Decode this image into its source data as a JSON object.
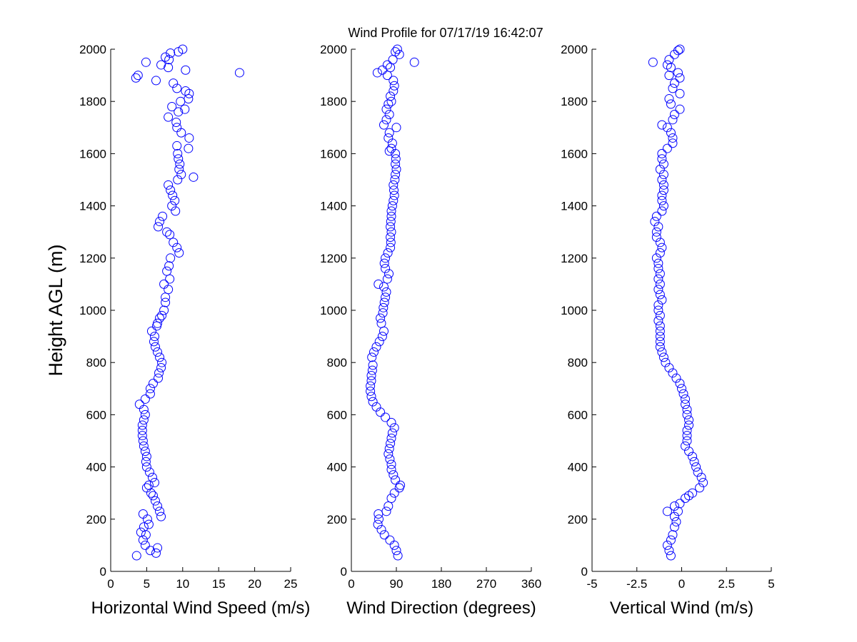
{
  "chart_data": [
    {
      "type": "scatter",
      "title": "Wind Profile for  07/17/19 16:42:07",
      "xlabel": "Horizontal Wind Speed (m/s)",
      "ylabel": "Height AGL (m)",
      "xlim": [
        0,
        25
      ],
      "ylim": [
        0,
        2000
      ],
      "xticks": [
        0,
        5,
        10,
        15,
        20,
        25
      ],
      "xtick_labels": [
        "0",
        "5",
        "10",
        "15",
        "20",
        "25"
      ],
      "yticks": [
        0,
        200,
        400,
        600,
        800,
        1000,
        1200,
        1400,
        1600,
        1800,
        2000
      ],
      "ytick_labels": [
        "0",
        "200",
        "400",
        "600",
        "800",
        "1000",
        "1200",
        "1400",
        "1600",
        "1800",
        "2000"
      ],
      "grid": false,
      "marker_color": "#0000ff",
      "points": [
        [
          3.6,
          60
        ],
        [
          6.3,
          70
        ],
        [
          6.5,
          90
        ],
        [
          5.5,
          80
        ],
        [
          4.8,
          100
        ],
        [
          4.5,
          120
        ],
        [
          4.9,
          140
        ],
        [
          4.2,
          150
        ],
        [
          4.6,
          170
        ],
        [
          5.3,
          180
        ],
        [
          5.1,
          200
        ],
        [
          4.5,
          220
        ],
        [
          7.0,
          210
        ],
        [
          6.8,
          230
        ],
        [
          6.5,
          250
        ],
        [
          6.2,
          270
        ],
        [
          5.9,
          290
        ],
        [
          5.6,
          300
        ],
        [
          5.0,
          320
        ],
        [
          5.3,
          330
        ],
        [
          6.1,
          340
        ],
        [
          5.8,
          360
        ],
        [
          5.4,
          380
        ],
        [
          5.0,
          400
        ],
        [
          4.9,
          420
        ],
        [
          5.0,
          440
        ],
        [
          4.8,
          460
        ],
        [
          4.6,
          480
        ],
        [
          4.5,
          500
        ],
        [
          4.4,
          520
        ],
        [
          4.4,
          540
        ],
        [
          4.4,
          560
        ],
        [
          4.6,
          580
        ],
        [
          4.8,
          600
        ],
        [
          4.6,
          620
        ],
        [
          4.0,
          640
        ],
        [
          4.8,
          660
        ],
        [
          5.5,
          680
        ],
        [
          5.5,
          700
        ],
        [
          5.9,
          720
        ],
        [
          6.6,
          740
        ],
        [
          6.7,
          760
        ],
        [
          7.0,
          780
        ],
        [
          7.1,
          800
        ],
        [
          6.8,
          820
        ],
        [
          6.5,
          840
        ],
        [
          6.2,
          860
        ],
        [
          6.0,
          880
        ],
        [
          6.1,
          900
        ],
        [
          5.7,
          920
        ],
        [
          6.4,
          940
        ],
        [
          6.5,
          950
        ],
        [
          6.8,
          970
        ],
        [
          7.1,
          980
        ],
        [
          7.4,
          1000
        ],
        [
          7.6,
          1030
        ],
        [
          7.6,
          1050
        ],
        [
          8.0,
          1080
        ],
        [
          7.4,
          1100
        ],
        [
          8.2,
          1120
        ],
        [
          7.8,
          1150
        ],
        [
          8.1,
          1170
        ],
        [
          8.3,
          1200
        ],
        [
          9.5,
          1220
        ],
        [
          9.2,
          1240
        ],
        [
          8.7,
          1260
        ],
        [
          8.2,
          1290
        ],
        [
          7.8,
          1300
        ],
        [
          6.6,
          1320
        ],
        [
          6.8,
          1340
        ],
        [
          7.2,
          1360
        ],
        [
          9.0,
          1380
        ],
        [
          8.5,
          1400
        ],
        [
          8.9,
          1420
        ],
        [
          8.6,
          1440
        ],
        [
          8.3,
          1460
        ],
        [
          8.0,
          1480
        ],
        [
          11.5,
          1510
        ],
        [
          9.3,
          1500
        ],
        [
          9.8,
          1520
        ],
        [
          9.5,
          1540
        ],
        [
          9.6,
          1560
        ],
        [
          9.4,
          1580
        ],
        [
          9.3,
          1600
        ],
        [
          10.8,
          1620
        ],
        [
          9.2,
          1630
        ],
        [
          10.9,
          1660
        ],
        [
          9.8,
          1680
        ],
        [
          9.2,
          1700
        ],
        [
          9.1,
          1720
        ],
        [
          8.0,
          1740
        ],
        [
          9.4,
          1760
        ],
        [
          8.5,
          1780
        ],
        [
          10.3,
          1770
        ],
        [
          9.7,
          1800
        ],
        [
          10.8,
          1810
        ],
        [
          10.9,
          1830
        ],
        [
          9.2,
          1850
        ],
        [
          8.7,
          1870
        ],
        [
          10.4,
          1840
        ],
        [
          6.3,
          1880
        ],
        [
          3.5,
          1890
        ],
        [
          3.8,
          1900
        ],
        [
          17.9,
          1910
        ],
        [
          10.4,
          1920
        ],
        [
          8.0,
          1930
        ],
        [
          7.0,
          1940
        ],
        [
          4.9,
          1950
        ],
        [
          8.1,
          1960
        ],
        [
          7.6,
          1970
        ],
        [
          9.4,
          1990
        ],
        [
          8.3,
          1985
        ],
        [
          10.0,
          2000
        ]
      ]
    },
    {
      "type": "scatter",
      "xlabel": "Wind Direction (degrees)",
      "ylabel": "",
      "xlim": [
        0,
        360
      ],
      "ylim": [
        0,
        2000
      ],
      "xticks": [
        0,
        90,
        180,
        270,
        360
      ],
      "xtick_labels": [
        "0",
        "90",
        "180",
        "270",
        "360"
      ],
      "yticks": [
        0,
        200,
        400,
        600,
        800,
        1000,
        1200,
        1400,
        1600,
        1800,
        2000
      ],
      "ytick_labels": [
        "0",
        "200",
        "400",
        "600",
        "800",
        "1000",
        "1200",
        "1400",
        "1600",
        "1800",
        "2000"
      ],
      "grid": false,
      "marker_color": "#0000ff",
      "points": [
        [
          93,
          60
        ],
        [
          90,
          80
        ],
        [
          86,
          100
        ],
        [
          77,
          120
        ],
        [
          66,
          140
        ],
        [
          60,
          160
        ],
        [
          53,
          180
        ],
        [
          55,
          200
        ],
        [
          54,
          220
        ],
        [
          70,
          230
        ],
        [
          74,
          250
        ],
        [
          80,
          280
        ],
        [
          86,
          300
        ],
        [
          96,
          320
        ],
        [
          98,
          330
        ],
        [
          88,
          350
        ],
        [
          84,
          370
        ],
        [
          80,
          390
        ],
        [
          80,
          410
        ],
        [
          77,
          430
        ],
        [
          74,
          450
        ],
        [
          76,
          470
        ],
        [
          78,
          490
        ],
        [
          80,
          510
        ],
        [
          82,
          530
        ],
        [
          86,
          550
        ],
        [
          80,
          570
        ],
        [
          68,
          590
        ],
        [
          58,
          610
        ],
        [
          50,
          630
        ],
        [
          43,
          650
        ],
        [
          40,
          670
        ],
        [
          38,
          690
        ],
        [
          38,
          710
        ],
        [
          40,
          730
        ],
        [
          40,
          750
        ],
        [
          42,
          770
        ],
        [
          43,
          790
        ],
        [
          41,
          820
        ],
        [
          45,
          840
        ],
        [
          50,
          860
        ],
        [
          56,
          880
        ],
        [
          62,
          900
        ],
        [
          65,
          920
        ],
        [
          60,
          950
        ],
        [
          58,
          970
        ],
        [
          63,
          990
        ],
        [
          64,
          1010
        ],
        [
          66,
          1030
        ],
        [
          68,
          1050
        ],
        [
          70,
          1070
        ],
        [
          65,
          1090
        ],
        [
          54,
          1100
        ],
        [
          72,
          1120
        ],
        [
          75,
          1140
        ],
        [
          68,
          1160
        ],
        [
          66,
          1180
        ],
        [
          68,
          1200
        ],
        [
          73,
          1220
        ],
        [
          78,
          1240
        ],
        [
          79,
          1260
        ],
        [
          78,
          1280
        ],
        [
          80,
          1300
        ],
        [
          78,
          1320
        ],
        [
          79,
          1340
        ],
        [
          80,
          1360
        ],
        [
          80,
          1380
        ],
        [
          82,
          1400
        ],
        [
          84,
          1420
        ],
        [
          86,
          1440
        ],
        [
          85,
          1460
        ],
        [
          84,
          1480
        ],
        [
          87,
          1500
        ],
        [
          88,
          1520
        ],
        [
          90,
          1540
        ],
        [
          88,
          1560
        ],
        [
          89,
          1580
        ],
        [
          88,
          1600
        ],
        [
          76,
          1610
        ],
        [
          80,
          1620
        ],
        [
          82,
          1640
        ],
        [
          74,
          1660
        ],
        [
          76,
          1680
        ],
        [
          90,
          1700
        ],
        [
          65,
          1710
        ],
        [
          70,
          1730
        ],
        [
          76,
          1750
        ],
        [
          70,
          1770
        ],
        [
          74,
          1790
        ],
        [
          80,
          1800
        ],
        [
          78,
          1820
        ],
        [
          84,
          1840
        ],
        [
          86,
          1860
        ],
        [
          84,
          1880
        ],
        [
          72,
          1900
        ],
        [
          52,
          1910
        ],
        [
          62,
          1920
        ],
        [
          78,
          1930
        ],
        [
          72,
          1940
        ],
        [
          83,
          1960
        ],
        [
          126,
          1950
        ],
        [
          96,
          1980
        ],
        [
          88,
          1990
        ],
        [
          92,
          2000
        ]
      ]
    },
    {
      "type": "scatter",
      "xlabel": "Vertical Wind (m/s)",
      "ylabel": "",
      "xlim": [
        -5,
        5
      ],
      "ylim": [
        0,
        2000
      ],
      "xticks": [
        -5,
        -2.5,
        0,
        2.5,
        5
      ],
      "xtick_labels": [
        "-5",
        "-2.5",
        "0",
        "2.5",
        "5"
      ],
      "yticks": [
        0,
        200,
        400,
        600,
        800,
        1000,
        1200,
        1400,
        1600,
        1800,
        2000
      ],
      "ytick_labels": [
        "0",
        "200",
        "400",
        "600",
        "800",
        "1000",
        "1200",
        "1400",
        "1600",
        "1800",
        "2000"
      ],
      "grid": false,
      "marker_color": "#0000ff",
      "points": [
        [
          -0.6,
          60
        ],
        [
          -0.7,
          80
        ],
        [
          -0.8,
          100
        ],
        [
          -0.6,
          120
        ],
        [
          -0.5,
          140
        ],
        [
          -0.4,
          170
        ],
        [
          -0.3,
          190
        ],
        [
          -0.4,
          210
        ],
        [
          -0.8,
          230
        ],
        [
          -0.2,
          230
        ],
        [
          -0.4,
          250
        ],
        [
          -0.1,
          260
        ],
        [
          0.2,
          280
        ],
        [
          0.4,
          290
        ],
        [
          0.6,
          300
        ],
        [
          1.0,
          320
        ],
        [
          1.2,
          340
        ],
        [
          1.1,
          360
        ],
        [
          0.9,
          380
        ],
        [
          0.8,
          400
        ],
        [
          0.7,
          420
        ],
        [
          0.6,
          440
        ],
        [
          0.4,
          460
        ],
        [
          0.2,
          480
        ],
        [
          0.3,
          500
        ],
        [
          0.3,
          520
        ],
        [
          0.3,
          540
        ],
        [
          0.4,
          560
        ],
        [
          0.4,
          580
        ],
        [
          0.3,
          600
        ],
        [
          0.3,
          620
        ],
        [
          0.2,
          640
        ],
        [
          0.2,
          660
        ],
        [
          0.1,
          680
        ],
        [
          0.0,
          700
        ],
        [
          -0.1,
          720
        ],
        [
          -0.3,
          740
        ],
        [
          -0.5,
          760
        ],
        [
          -0.7,
          780
        ],
        [
          -0.9,
          800
        ],
        [
          -1.0,
          820
        ],
        [
          -1.1,
          840
        ],
        [
          -1.2,
          860
        ],
        [
          -1.2,
          880
        ],
        [
          -1.2,
          900
        ],
        [
          -1.2,
          920
        ],
        [
          -1.2,
          940
        ],
        [
          -1.3,
          960
        ],
        [
          -1.2,
          980
        ],
        [
          -1.3,
          1000
        ],
        [
          -1.3,
          1020
        ],
        [
          -1.1,
          1040
        ],
        [
          -1.2,
          1060
        ],
        [
          -1.3,
          1080
        ],
        [
          -1.2,
          1100
        ],
        [
          -1.3,
          1120
        ],
        [
          -1.2,
          1140
        ],
        [
          -1.3,
          1160
        ],
        [
          -1.3,
          1180
        ],
        [
          -1.4,
          1200
        ],
        [
          -1.2,
          1220
        ],
        [
          -1.1,
          1240
        ],
        [
          -1.2,
          1260
        ],
        [
          -1.4,
          1280
        ],
        [
          -1.4,
          1300
        ],
        [
          -1.3,
          1320
        ],
        [
          -1.5,
          1340
        ],
        [
          -1.4,
          1360
        ],
        [
          -1.1,
          1380
        ],
        [
          -1.0,
          1400
        ],
        [
          -1.1,
          1420
        ],
        [
          -1.1,
          1440
        ],
        [
          -1.0,
          1460
        ],
        [
          -1.0,
          1480
        ],
        [
          -1.1,
          1500
        ],
        [
          -1.0,
          1520
        ],
        [
          -1.2,
          1540
        ],
        [
          -1.0,
          1560
        ],
        [
          -1.1,
          1580
        ],
        [
          -1.1,
          1600
        ],
        [
          -0.8,
          1620
        ],
        [
          -0.5,
          1640
        ],
        [
          -0.5,
          1660
        ],
        [
          -0.6,
          1680
        ],
        [
          -0.8,
          1700
        ],
        [
          -1.1,
          1710
        ],
        [
          -0.5,
          1730
        ],
        [
          -0.4,
          1750
        ],
        [
          -0.1,
          1770
        ],
        [
          -0.6,
          1790
        ],
        [
          -0.7,
          1810
        ],
        [
          -0.1,
          1830
        ],
        [
          -0.5,
          1850
        ],
        [
          -0.4,
          1870
        ],
        [
          -0.1,
          1890
        ],
        [
          -0.7,
          1900
        ],
        [
          -0.2,
          1910
        ],
        [
          -0.6,
          1930
        ],
        [
          -1.6,
          1950
        ],
        [
          -0.8,
          1940
        ],
        [
          -0.7,
          1960
        ],
        [
          -0.4,
          1980
        ],
        [
          -0.2,
          1995
        ],
        [
          -0.1,
          2000
        ]
      ]
    }
  ]
}
